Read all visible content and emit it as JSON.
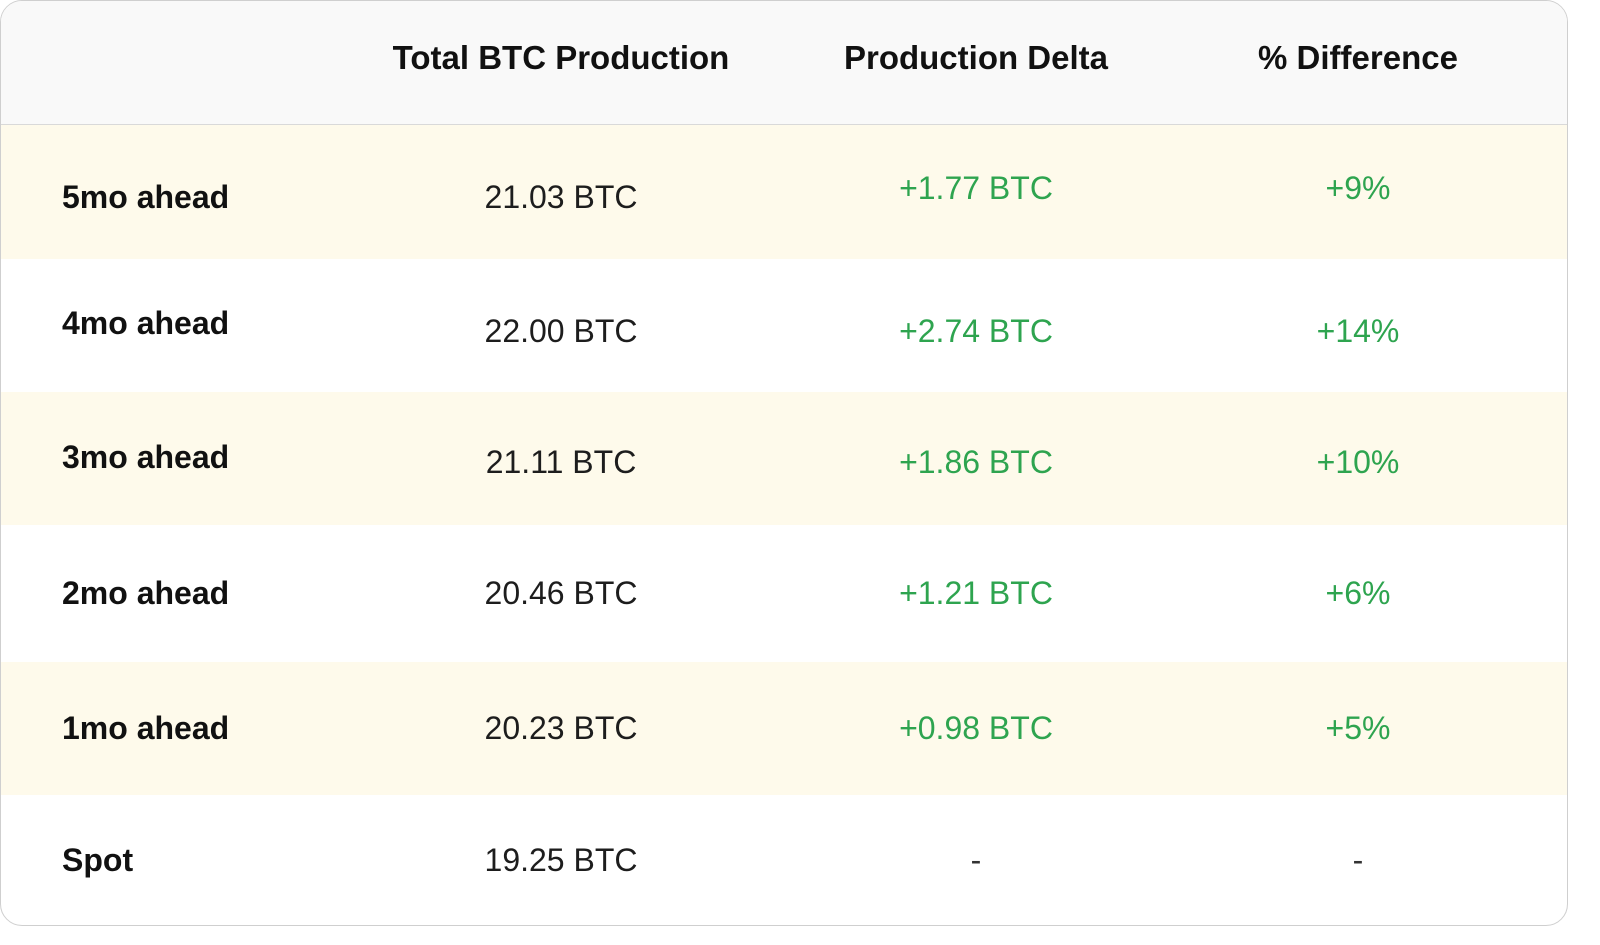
{
  "table": {
    "headers": [
      "",
      "Total BTC Production",
      "Production Delta",
      "% Difference"
    ],
    "rows": [
      {
        "label": "5mo ahead",
        "total": "21.03 BTC",
        "delta": "+1.77 BTC",
        "pct": "+9%"
      },
      {
        "label": "4mo ahead",
        "total": "22.00 BTC",
        "delta": "+2.74 BTC",
        "pct": "+14%"
      },
      {
        "label": "3mo ahead",
        "total": "21.11 BTC",
        "delta": "+1.86 BTC",
        "pct": "+10%"
      },
      {
        "label": "2mo ahead",
        "total": "20.46 BTC",
        "delta": "+1.21 BTC",
        "pct": "+6%"
      },
      {
        "label": "1mo ahead",
        "total": "20.23 BTC",
        "delta": "+0.98 BTC",
        "pct": "+5%"
      },
      {
        "label": "Spot",
        "total": "19.25 BTC",
        "delta": "-",
        "pct": "-"
      }
    ]
  },
  "colors": {
    "positive": "#2ea44f",
    "row_highlight": "#fefaeb",
    "header_bg": "#f9f9f9"
  }
}
